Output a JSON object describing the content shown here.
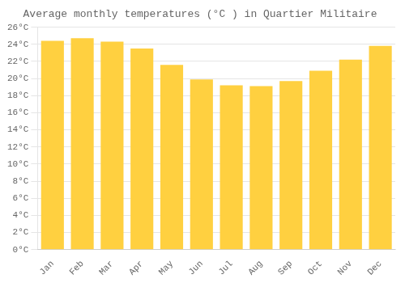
{
  "chart_data": {
    "type": "bar",
    "title": "Average monthly temperatures (°C ) in Quartier Militaire",
    "categories": [
      "Jan",
      "Feb",
      "Mar",
      "Apr",
      "May",
      "Jun",
      "Jul",
      "Aug",
      "Sep",
      "Oct",
      "Nov",
      "Dec"
    ],
    "values": [
      24.4,
      24.7,
      24.3,
      23.5,
      21.6,
      19.9,
      19.2,
      19.1,
      19.7,
      20.9,
      22.2,
      23.8
    ],
    "color": "#FFD040",
    "ylim": [
      0,
      26
    ],
    "yticks": [
      {
        "value": 0,
        "label": "0°C"
      },
      {
        "value": 2,
        "label": "2°C"
      },
      {
        "value": 4,
        "label": "4°C"
      },
      {
        "value": 6,
        "label": "6°C"
      },
      {
        "value": 8,
        "label": "8°C"
      },
      {
        "value": 10,
        "label": "10°C"
      },
      {
        "value": 12,
        "label": "12°C"
      },
      {
        "value": 14,
        "label": "14°C"
      },
      {
        "value": 16,
        "label": "16°C"
      },
      {
        "value": 18,
        "label": "18°C"
      },
      {
        "value": 20,
        "label": "20°C"
      },
      {
        "value": 22,
        "label": "22°C"
      },
      {
        "value": 24,
        "label": "24°C"
      },
      {
        "value": 26,
        "label": "26°C"
      }
    ],
    "grid": true
  }
}
